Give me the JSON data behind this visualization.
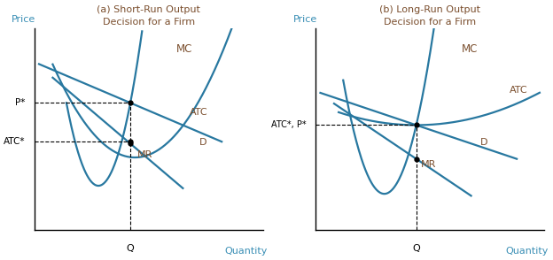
{
  "title_a": "(a) Short-Run Output\nDecision for a Firm",
  "title_b": "(b) Long-Run Output\nDecision for a Firm",
  "title_color": "#7B4F2E",
  "curve_color": "#2878A0",
  "axis_label_color": "#3A8FB5",
  "curve_label_color": "#7B4F2E",
  "background_color": "#FFFFFF",
  "panel_a": {
    "Q": 0.42,
    "P_star": 0.63,
    "ATC_star": 0.44,
    "ylabel": "Price",
    "xlabel": "Quantity"
  },
  "panel_b": {
    "Q": 0.44,
    "P_star": 0.52,
    "ylabel": "Price",
    "xlabel": "Quantity"
  }
}
